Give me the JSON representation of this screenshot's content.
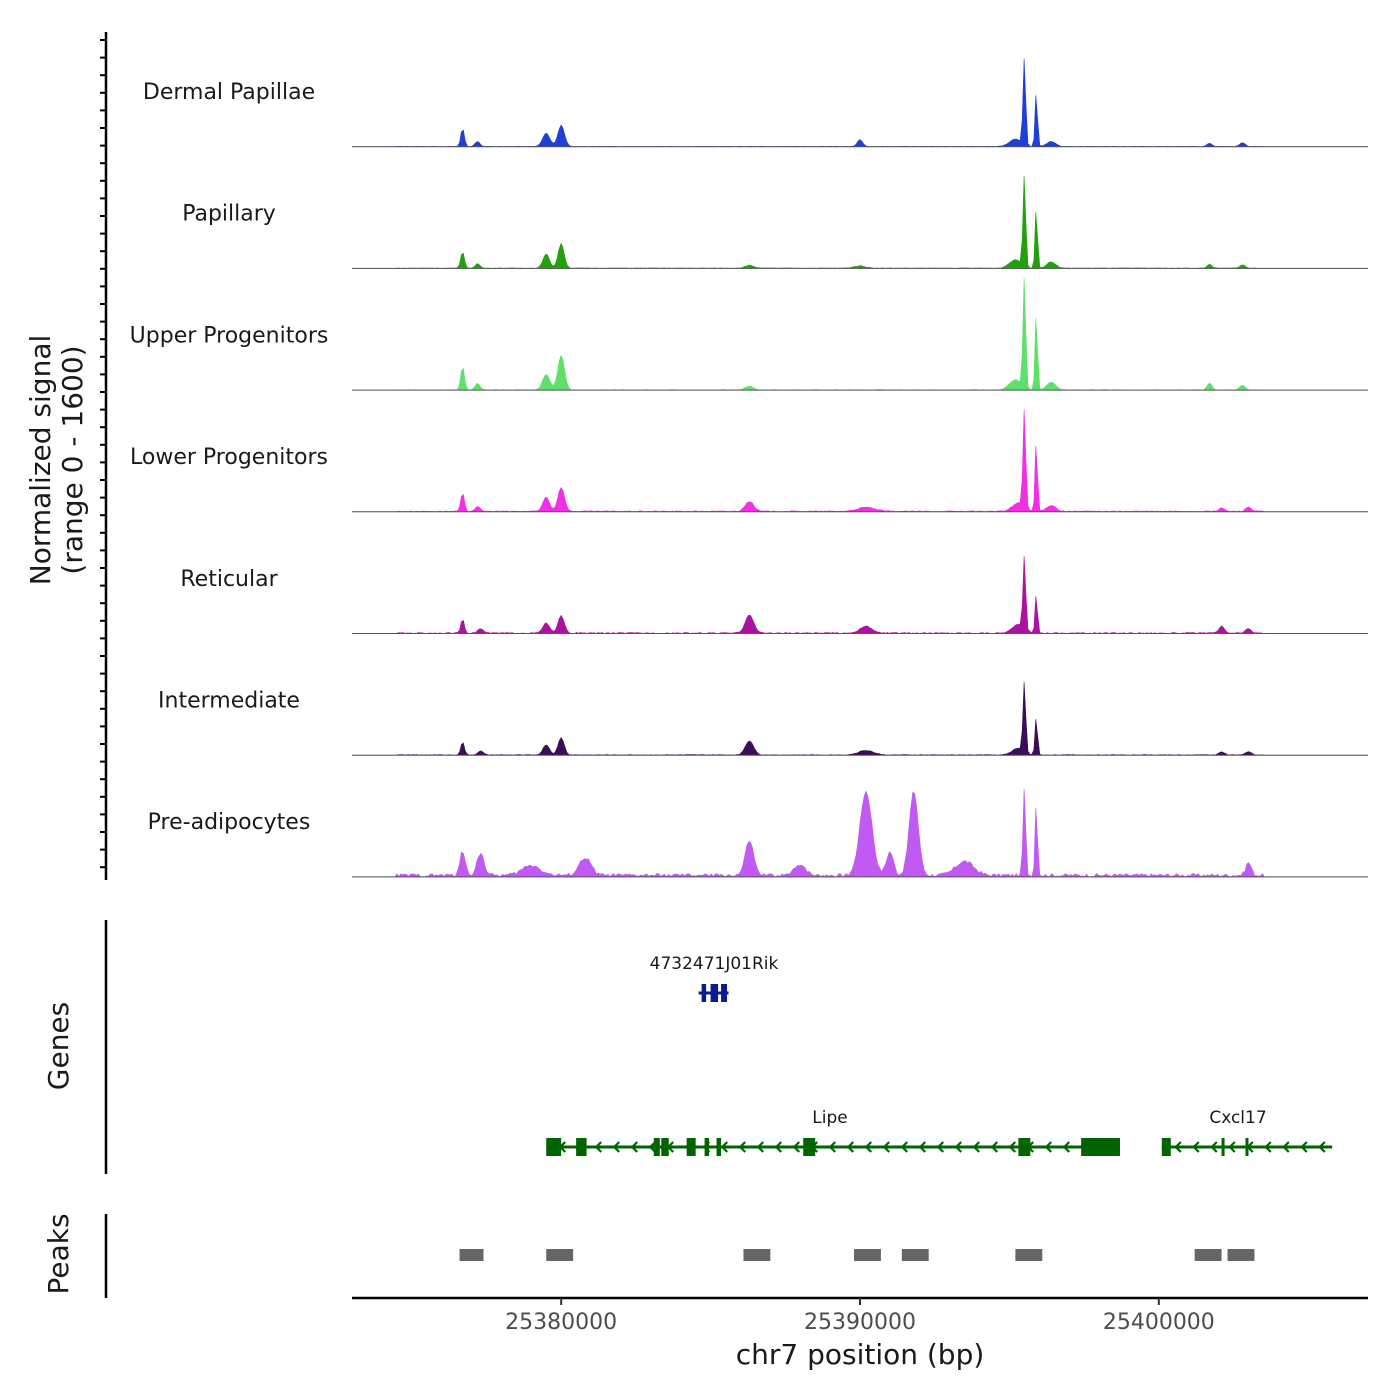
{
  "chart_data": {
    "type": "area",
    "title": "",
    "ylabel": "Normalized signal",
    "ylabel_range": "(range 0 - 1600)",
    "xlabel": "chr7 position (bp)",
    "xlim": [
      25373000,
      25407000
    ],
    "ylim": [
      0,
      1600
    ],
    "x_ticks": [
      25380000,
      25390000,
      25400000
    ],
    "x_tick_labels": [
      "25380000",
      "25390000",
      "25400000"
    ],
    "tracks": [
      {
        "name": "Dermal Papillae",
        "color": "#1f3fd6",
        "peaks": [
          [
            25376700,
            320,
            60
          ],
          [
            25377200,
            90,
            80
          ],
          [
            25379500,
            240,
            120
          ],
          [
            25380000,
            380,
            110
          ],
          [
            25390000,
            120,
            90
          ],
          [
            25395500,
            1550,
            45
          ],
          [
            25395900,
            980,
            40
          ],
          [
            25395200,
            130,
            200
          ],
          [
            25396400,
            90,
            150
          ],
          [
            25401700,
            60,
            80
          ],
          [
            25402800,
            70,
            90
          ]
        ],
        "baseline": 8
      },
      {
        "name": "Papillary",
        "color": "#22a00e",
        "peaks": [
          [
            25376700,
            300,
            60
          ],
          [
            25377200,
            80,
            80
          ],
          [
            25379500,
            250,
            110
          ],
          [
            25380000,
            440,
            100
          ],
          [
            25386300,
            50,
            150
          ],
          [
            25390000,
            40,
            200
          ],
          [
            25395500,
            1620,
            45
          ],
          [
            25395900,
            1080,
            40
          ],
          [
            25395200,
            150,
            200
          ],
          [
            25396400,
            110,
            150
          ],
          [
            25401700,
            70,
            80
          ],
          [
            25402800,
            60,
            90
          ]
        ],
        "baseline": 10
      },
      {
        "name": "Upper Progenitors",
        "color": "#5fe06a",
        "peaks": [
          [
            25376700,
            420,
            60
          ],
          [
            25377200,
            120,
            80
          ],
          [
            25379500,
            280,
            120
          ],
          [
            25380000,
            620,
            110
          ],
          [
            25386300,
            60,
            140
          ],
          [
            25395500,
            2000,
            45
          ],
          [
            25395900,
            1380,
            40
          ],
          [
            25395200,
            180,
            200
          ],
          [
            25396400,
            140,
            150
          ],
          [
            25401700,
            120,
            80
          ],
          [
            25402800,
            80,
            90
          ]
        ],
        "baseline": 10
      },
      {
        "name": "Lower Progenitors",
        "color": "#f32fe6",
        "peaks": [
          [
            25376700,
            320,
            60
          ],
          [
            25377200,
            80,
            90
          ],
          [
            25379500,
            260,
            110
          ],
          [
            25380000,
            430,
            110
          ],
          [
            25386300,
            180,
            140
          ],
          [
            25390200,
            70,
            300
          ],
          [
            25395500,
            1750,
            45
          ],
          [
            25395900,
            1250,
            40
          ],
          [
            25395300,
            150,
            200
          ],
          [
            25396400,
            110,
            150
          ],
          [
            25402100,
            60,
            90
          ],
          [
            25403000,
            80,
            90
          ]
        ],
        "baseline": 18
      },
      {
        "name": "Reticular",
        "color": "#a9139f",
        "peaks": [
          [
            25376700,
            250,
            60
          ],
          [
            25377300,
            80,
            90
          ],
          [
            25379500,
            180,
            110
          ],
          [
            25380000,
            320,
            100
          ],
          [
            25386300,
            330,
            140
          ],
          [
            25390200,
            120,
            200
          ],
          [
            25395500,
            1300,
            45
          ],
          [
            25395900,
            700,
            40
          ],
          [
            25395300,
            150,
            200
          ],
          [
            25402100,
            120,
            90
          ],
          [
            25403000,
            80,
            90
          ]
        ],
        "baseline": 18
      },
      {
        "name": "Intermediate",
        "color": "#3b0d57",
        "peaks": [
          [
            25376700,
            230,
            60
          ],
          [
            25377300,
            70,
            90
          ],
          [
            25379500,
            180,
            110
          ],
          [
            25380000,
            310,
            100
          ],
          [
            25386300,
            250,
            140
          ],
          [
            25390200,
            80,
            250
          ],
          [
            25395500,
            1250,
            45
          ],
          [
            25395900,
            690,
            40
          ],
          [
            25395300,
            120,
            200
          ],
          [
            25402100,
            60,
            90
          ],
          [
            25403000,
            60,
            90
          ]
        ],
        "baseline": 12
      },
      {
        "name": "Pre-adipocytes",
        "color": "#c05af2",
        "peaks": [
          [
            25376700,
            420,
            90
          ],
          [
            25377300,
            400,
            120
          ],
          [
            25379000,
            180,
            300
          ],
          [
            25380800,
            310,
            200
          ],
          [
            25386300,
            620,
            140
          ],
          [
            25388000,
            200,
            180
          ],
          [
            25390200,
            1500,
            200
          ],
          [
            25391000,
            420,
            120
          ],
          [
            25391800,
            1500,
            150
          ],
          [
            25393500,
            250,
            300
          ],
          [
            25395500,
            1550,
            45
          ],
          [
            25395900,
            1300,
            40
          ],
          [
            25403000,
            230,
            90
          ]
        ],
        "baseline": 60
      }
    ],
    "genes": [
      {
        "name": "4732471J01Rik",
        "strand": "-",
        "start": 25384600,
        "end": 25385600,
        "row": 0,
        "color": "#0a1b8f",
        "exons": [
          [
            25384700,
            25384850
          ],
          [
            25385000,
            25385250
          ],
          [
            25385350,
            25385550
          ]
        ]
      },
      {
        "name": "Lipe",
        "strand": "-",
        "start": 25379500,
        "end": 25398700,
        "row": 1,
        "color": "#006400",
        "exons": [
          [
            25379500,
            25380000
          ],
          [
            25380500,
            25380850
          ],
          [
            25383100,
            25383300
          ],
          [
            25383350,
            25383600
          ],
          [
            25384200,
            25384500
          ],
          [
            25384800,
            25384950
          ],
          [
            25385200,
            25385350
          ],
          [
            25388100,
            25388500
          ],
          [
            25395300,
            25395700
          ],
          [
            25397400,
            25398700
          ]
        ]
      },
      {
        "name": "Cxcl17",
        "strand": "-",
        "start": 25400100,
        "end": 25405800,
        "row": 1,
        "color": "#006400",
        "exons": [
          [
            25400100,
            25400400
          ],
          [
            25402100,
            25402150
          ],
          [
            25402900,
            25402950
          ]
        ]
      }
    ],
    "genes_label": "Genes",
    "peaks_label": "Peaks",
    "peak_regions": [
      [
        25376600,
        25377400
      ],
      [
        25379500,
        25380400
      ],
      [
        25386100,
        25387000
      ],
      [
        25389800,
        25390700
      ],
      [
        25391400,
        25392300
      ],
      [
        25395200,
        25396100
      ],
      [
        25401200,
        25402100
      ],
      [
        25402300,
        25403200
      ]
    ],
    "peak_color": "#666666"
  }
}
